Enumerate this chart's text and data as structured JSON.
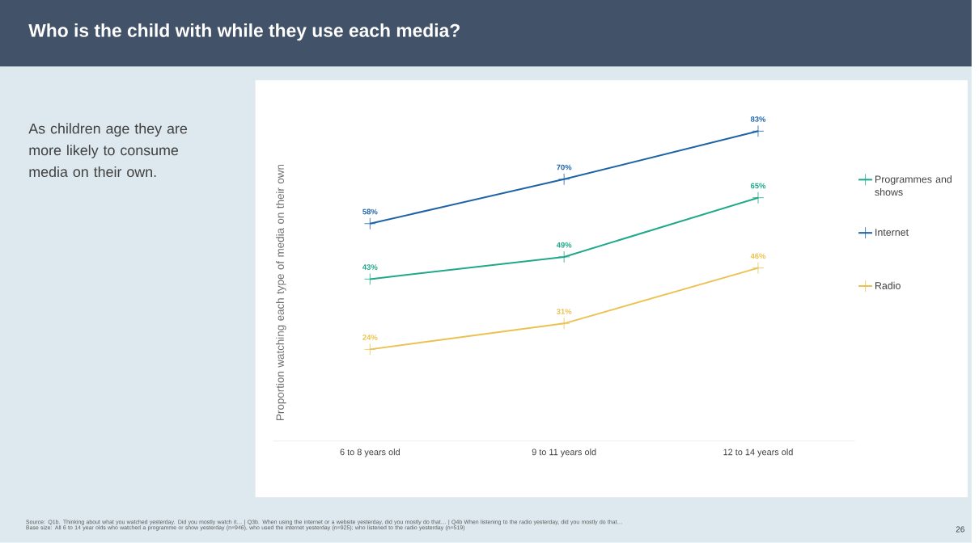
{
  "chart_data": {
    "type": "line",
    "title": "Who is the child with while they use each media?",
    "subtitle": "As children age they are more likely to consume media on their own.",
    "ylabel": "Proportion watching each type of media on their own",
    "categories": [
      "6 to 8 years old",
      "9 to 11 years old",
      "12 to 14 years old"
    ],
    "series": [
      {
        "name": "Programmes and shows",
        "color": "#1fa88a",
        "values": [
          43,
          49,
          65
        ],
        "value_labels": [
          "43%",
          "49%",
          "65%"
        ]
      },
      {
        "name": "Internet",
        "color": "#1d63a6",
        "values": [
          58,
          70,
          83
        ],
        "value_labels": [
          "58%",
          "70%",
          "83%"
        ]
      },
      {
        "name": "Radio",
        "color": "#ebc251",
        "values": [
          24,
          31,
          46
        ],
        "value_labels": [
          "24%",
          "31%",
          "46%"
        ]
      }
    ],
    "marker": "cross",
    "line_style": "solid",
    "legend": "right",
    "annotations": [
      "Source: Q1b. Thinking about what you watched yesterday. Did you mostly watch it… | Q3b. When using the internet or a website yesterday, did you mostly do that… | Q4b When listening to the radio yesterday, did you mostly do that…",
      "Base size: All 6 to 14 year olds who watched a programme or show yesterday (n=946), who used the internet yesterday (n=925); who listened to the radio yesterday (n=519)",
      "26"
    ]
  }
}
